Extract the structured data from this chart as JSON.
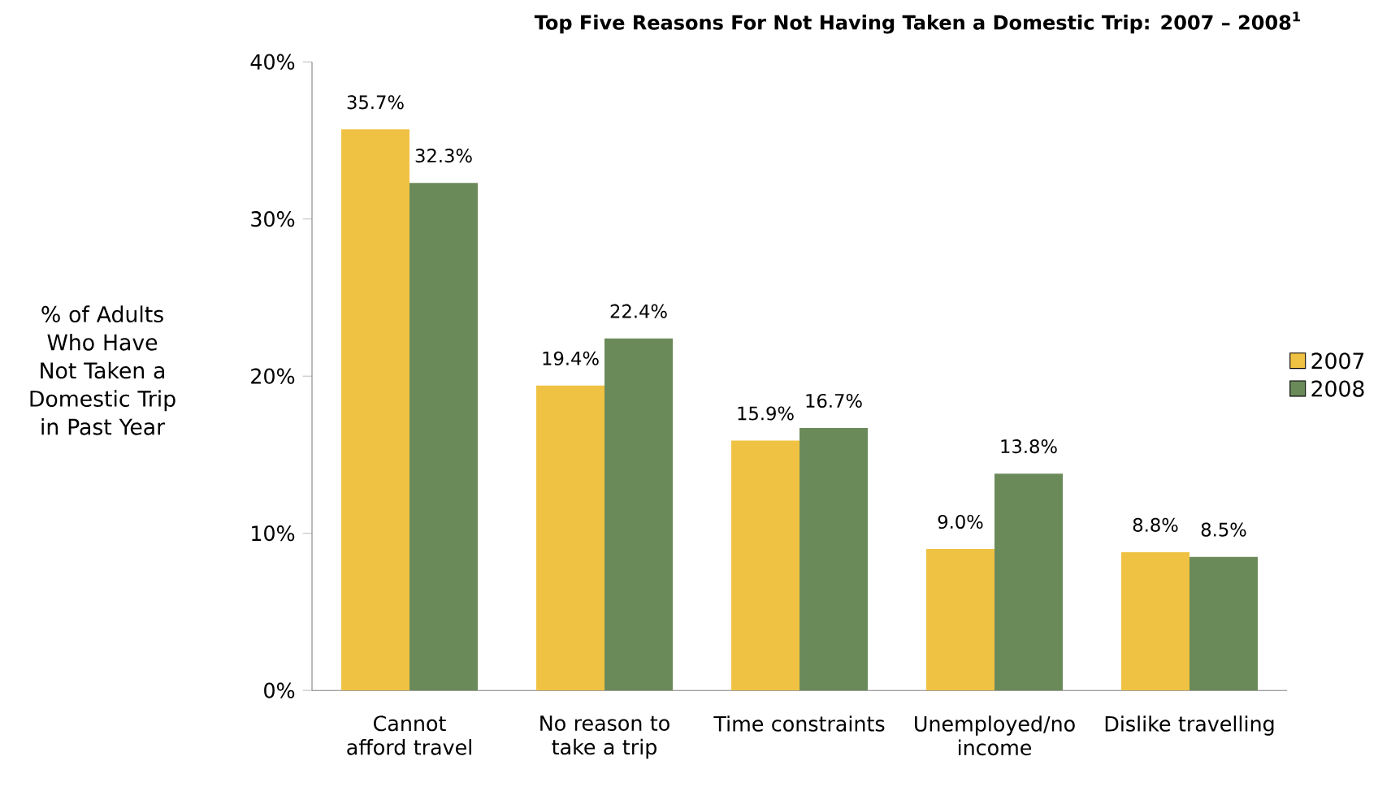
{
  "chart_data": {
    "type": "bar",
    "title": "Top Five Reasons For Not Having Taken a Domestic Trip: 2007 – 2008$^{1}$",
    "ylabel": "% of Adults Who Have Not Taken a Domestic Trip in Past Year",
    "categories": [
      "Cannot afford travel",
      "No reason to take a trip",
      "Time constraints",
      "Unemployed/no income",
      "Dislike travelling"
    ],
    "series": [
      {
        "name": "2007",
        "color": "#f0c243",
        "values": [
          35.7,
          19.4,
          15.9,
          9.0,
          8.8
        ],
        "value_labels": [
          "35.7%",
          "19.4%",
          "15.9%",
          "9.0%",
          "8.8%"
        ]
      },
      {
        "name": "2008",
        "color": "#6b8a5a",
        "values": [
          32.3,
          22.4,
          16.7,
          13.8,
          8.5
        ],
        "value_labels": [
          "32.3%",
          "22.4%",
          "16.7%",
          "13.8%",
          "8.5%"
        ]
      }
    ],
    "ylim": [
      0,
      40
    ],
    "yticks": [
      {
        "value": 0,
        "label": "0%"
      },
      {
        "value": 10,
        "label": "10%"
      },
      {
        "value": 20,
        "label": "20%"
      },
      {
        "value": 30,
        "label": "30%"
      },
      {
        "value": 40,
        "label": "40%"
      }
    ],
    "legend": "right",
    "grid": false
  }
}
